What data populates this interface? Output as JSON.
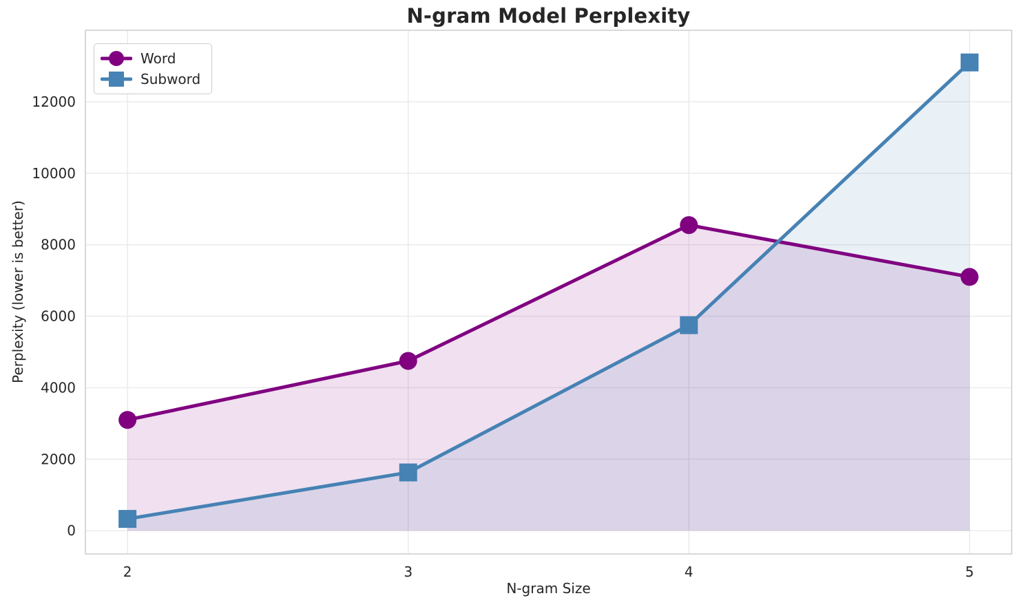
{
  "chart_data": {
    "type": "line",
    "title": "N-gram Model Perplexity",
    "xlabel": "N-gram Size",
    "ylabel": "Perplexity (lower is better)",
    "x": [
      2,
      3,
      4,
      5
    ],
    "x_ticks": [
      2,
      3,
      4,
      5
    ],
    "y_ticks": [
      0,
      2000,
      4000,
      6000,
      8000,
      10000,
      12000
    ],
    "xlim": [
      1.85,
      5.15
    ],
    "ylim": [
      -650,
      14000
    ],
    "grid": true,
    "legend_position": "upper left",
    "series": [
      {
        "name": "Word",
        "color": "#800080",
        "marker": "circle",
        "line_width": 5,
        "fill_opacity": 0.12,
        "values": [
          3100,
          4750,
          8550,
          7100
        ]
      },
      {
        "name": "Subword",
        "color": "#4682B4",
        "marker": "square",
        "line_width": 5,
        "fill_opacity": 0.12,
        "values": [
          330,
          1630,
          5750,
          13100
        ]
      }
    ],
    "fill_baseline": 0,
    "grid_color": "#e9e9e9",
    "spine_color": "#cfcfcf",
    "text_color": "#262626",
    "tick_font_size": 20
  }
}
